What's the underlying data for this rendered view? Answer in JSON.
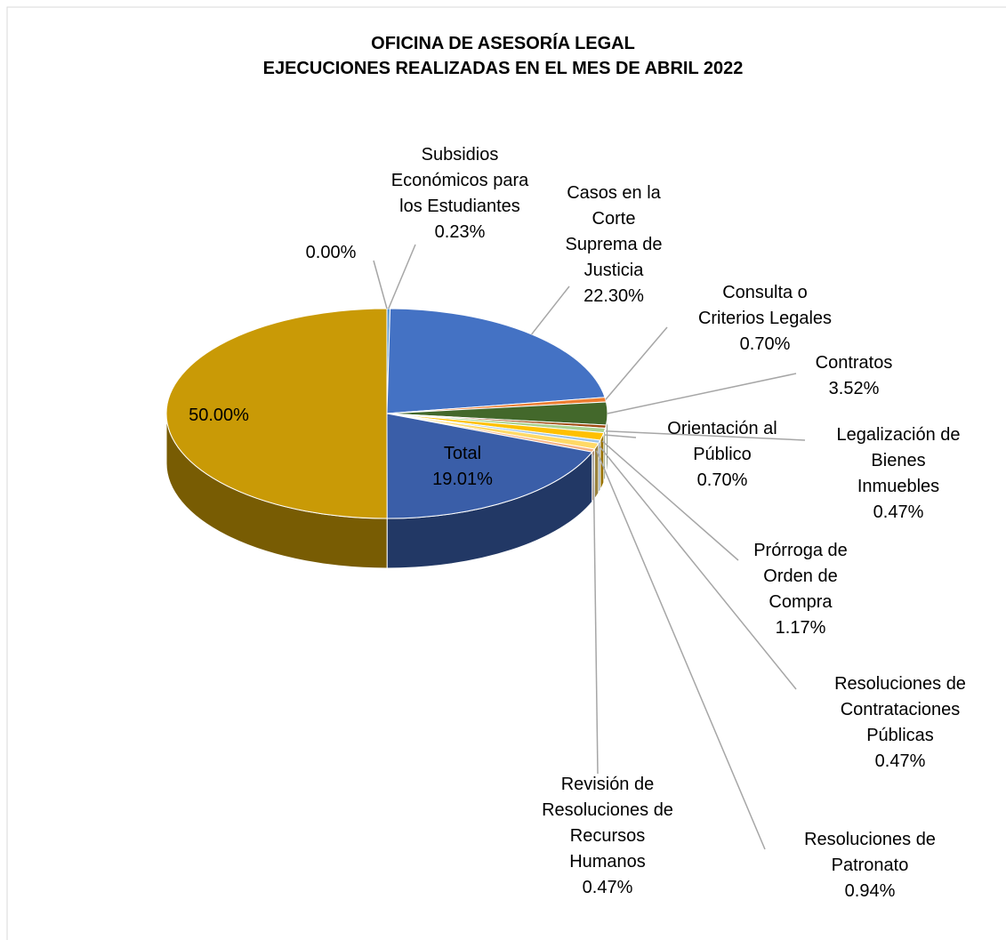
{
  "chart_data": {
    "type": "pie3d",
    "title": "OFICINA DE ASESORÍA LEGAL",
    "subtitle": "EJECUCIONES REALIZADAS EN EL MES DE ABRIL 2022",
    "categories": [
      null,
      "Subsidios Económicos para los Estudiantes",
      "Casos en la Corte Suprema de Justicia",
      "Consulta o Criterios Legales",
      "Contratos",
      "Legalización de Bienes Inmuebles",
      "Orientación al Público",
      "Prórroga de Orden de Compra",
      "Resoluciones de Contrataciones Públicas",
      "Resoluciones de Patronato",
      "Revisión de Resoluciones de Recursos Humanos",
      "Total",
      null
    ],
    "values": [
      0,
      0.23,
      22.3,
      0.7,
      3.52,
      0.47,
      0.7,
      1.17,
      0.47,
      0.94,
      0.47,
      19.01,
      50
    ],
    "value_labels": [
      "0.00%",
      "0.23%",
      "22.30%",
      "0.70%",
      "3.52%",
      "0.47%",
      "0.70%",
      "1.17%",
      "0.47%",
      "0.94%",
      "0.47%",
      "19.01%",
      "50.00%"
    ],
    "colors": [
      "#a5a5a5",
      "#5b9bd5",
      "#4472c4",
      "#ed7d31",
      "#43682b",
      "#9e480e",
      "#a9d18e",
      "#ffc000",
      "#9dc3e6",
      "#ffd966",
      "#f4b183",
      "#3a5ea8",
      "#c99a06"
    ]
  }
}
